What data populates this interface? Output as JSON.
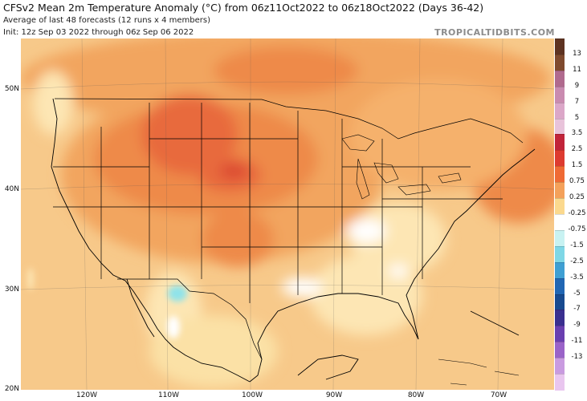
{
  "header": {
    "title": "CFSv2 Mean 2m Temperature Anomaly (°C) from 06z11Oct2022 to 06z18Oct2022 (Days 36-42)",
    "subtitle": "Average of last 48 forecasts (12 runs x 4 members)",
    "init": "Init: 12z Sep 03 2022 through 06z Sep 06 2022",
    "brand": "TROPICALTIDBITS.COM"
  },
  "map": {
    "lat_labels": [
      "50N",
      "40N",
      "30N",
      "20N"
    ],
    "lon_labels": [
      "120W",
      "110W",
      "100W",
      "90W",
      "80W",
      "70W"
    ]
  },
  "colorbar": {
    "labels": [
      "13",
      "11",
      "9",
      "7",
      "5",
      "3.5",
      "2.5",
      "1.5",
      "0.75",
      "0.25",
      "-0.25",
      "-0.75",
      "-1.5",
      "-2.5",
      "-3.5",
      "-5",
      "-7",
      "-9",
      "-11",
      "-13"
    ],
    "colors": [
      "#7f4a2e",
      "#b06a8e",
      "#c98bb0",
      "#dba7c8",
      "#e8c3da",
      "#c1243a",
      "#dd3b30",
      "#ef6a35",
      "#f4a15a",
      "#fbd98e",
      "#ffffff",
      "#c8f2f2",
      "#7fd7e6",
      "#3f9fd3",
      "#2166b3",
      "#184a8f",
      "#3a2f8f",
      "#6a3fb0",
      "#9a63c8",
      "#c99be0",
      "#e9c6ef"
    ],
    "top_color": "#5e3322"
  },
  "colors": {
    "land_base": "#f7c98a",
    "ocean_base": "#f5d49a",
    "warm_1": "#f2a55e",
    "warm_2": "#ee8a4a",
    "warm_3": "#e86a3c",
    "warm_4": "#dc4a30",
    "neutral_light": "#fde6b4",
    "near_zero": "#ffffff",
    "cool": "#8fe3ea"
  }
}
